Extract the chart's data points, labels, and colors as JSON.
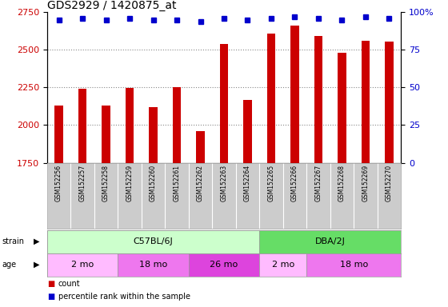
{
  "title": "GDS2929 / 1420875_at",
  "samples": [
    "GSM152256",
    "GSM152257",
    "GSM152258",
    "GSM152259",
    "GSM152260",
    "GSM152261",
    "GSM152262",
    "GSM152263",
    "GSM152264",
    "GSM152265",
    "GSM152266",
    "GSM152267",
    "GSM152268",
    "GSM152269",
    "GSM152270"
  ],
  "counts": [
    2130,
    2240,
    2130,
    2245,
    2120,
    2250,
    1960,
    2540,
    2165,
    2610,
    2660,
    2590,
    2480,
    2560,
    2555
  ],
  "percentile_ranks": [
    95,
    96,
    95,
    96,
    95,
    95,
    94,
    96,
    95,
    96,
    97,
    96,
    95,
    97,
    96
  ],
  "bar_color": "#cc0000",
  "dot_color": "#0000cc",
  "ylim_left": [
    1750,
    2750
  ],
  "ylim_right": [
    0,
    100
  ],
  "yticks_left": [
    1750,
    2000,
    2250,
    2500,
    2750
  ],
  "yticks_right": [
    0,
    25,
    50,
    75,
    100
  ],
  "strain_groups": [
    {
      "label": "C57BL/6J",
      "start": 0,
      "end": 9
    },
    {
      "label": "DBA/2J",
      "start": 9,
      "end": 15
    }
  ],
  "strain_colors": [
    "#ccffcc",
    "#66dd66"
  ],
  "age_groups": [
    {
      "label": "2 mo",
      "start": 0,
      "end": 3
    },
    {
      "label": "18 mo",
      "start": 3,
      "end": 6
    },
    {
      "label": "26 mo",
      "start": 6,
      "end": 9
    },
    {
      "label": "2 mo",
      "start": 9,
      "end": 11
    },
    {
      "label": "18 mo",
      "start": 11,
      "end": 15
    }
  ],
  "age_colors": [
    "#ffbbff",
    "#ee77ee",
    "#dd44dd",
    "#ffbbff",
    "#ee77ee"
  ],
  "legend_count_color": "#cc0000",
  "legend_dot_color": "#0000cc",
  "background_color": "#ffffff",
  "grid_color": "#888888",
  "title_fontsize": 10,
  "tick_label_fontsize": 8,
  "annotation_fontsize": 8,
  "sample_label_bg": "#cccccc"
}
